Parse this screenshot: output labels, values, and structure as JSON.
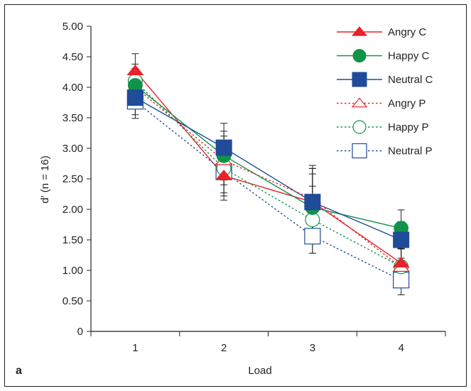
{
  "chart_data": {
    "type": "line",
    "panel_label": "a",
    "xlabel": "Load",
    "ylabel": "d′ (n = 16)",
    "categories": [
      "1",
      "2",
      "3",
      "4"
    ],
    "x": [
      1,
      2,
      3,
      4
    ],
    "xlim": [
      0.5,
      4.5
    ],
    "ylim": [
      0,
      5
    ],
    "yticks": [
      "0",
      "0.50",
      "1.00",
      "1.50",
      "2.00",
      "2.50",
      "3.00",
      "3.50",
      "4.00",
      "4.50",
      "5.00"
    ],
    "ytick_values": [
      0,
      0.5,
      1,
      1.5,
      2,
      2.5,
      3,
      3.5,
      4,
      4.5,
      5
    ],
    "grid": false,
    "legend_position": "top-right",
    "series": [
      {
        "name": "Angry C",
        "values": [
          4.27,
          2.55,
          2.12,
          1.12
        ],
        "errors": [
          0.28,
          0.4,
          0.55,
          0.3
        ],
        "color": "#e8212a",
        "marker": "triangle",
        "filled": true,
        "dashed": false
      },
      {
        "name": "Happy C",
        "values": [
          4.03,
          2.88,
          2.03,
          1.69
        ],
        "errors": [
          0.28,
          0.4,
          0.55,
          0.3
        ],
        "color": "#11924a",
        "marker": "circle",
        "filled": true,
        "dashed": false
      },
      {
        "name": "Neutral C",
        "values": [
          3.83,
          3.01,
          2.12,
          1.5
        ],
        "errors": [
          0.28,
          0.4,
          0.55,
          0.3
        ],
        "color": "#1f4b99",
        "marker": "square",
        "filled": true,
        "dashed": false
      },
      {
        "name": "Angry P",
        "values": [
          4.0,
          2.8,
          2.17,
          1.05
        ],
        "errors": [
          0.28,
          0.4,
          0.55,
          0.3
        ],
        "color": "#e8212a",
        "marker": "triangle",
        "filled": false,
        "dashed": true
      },
      {
        "name": "Happy P",
        "values": [
          4.1,
          2.67,
          1.83,
          1.06
        ],
        "errors": [
          0.28,
          0.4,
          0.55,
          0.3
        ],
        "color": "#11924a",
        "marker": "circle",
        "filled": false,
        "dashed": true
      },
      {
        "name": "Neutral P",
        "values": [
          3.77,
          2.62,
          1.56,
          0.84
        ],
        "errors": [
          0.28,
          0.4,
          0.28,
          0.24
        ],
        "color": "#1f4b99",
        "marker": "square",
        "filled": false,
        "dashed": true
      }
    ]
  }
}
